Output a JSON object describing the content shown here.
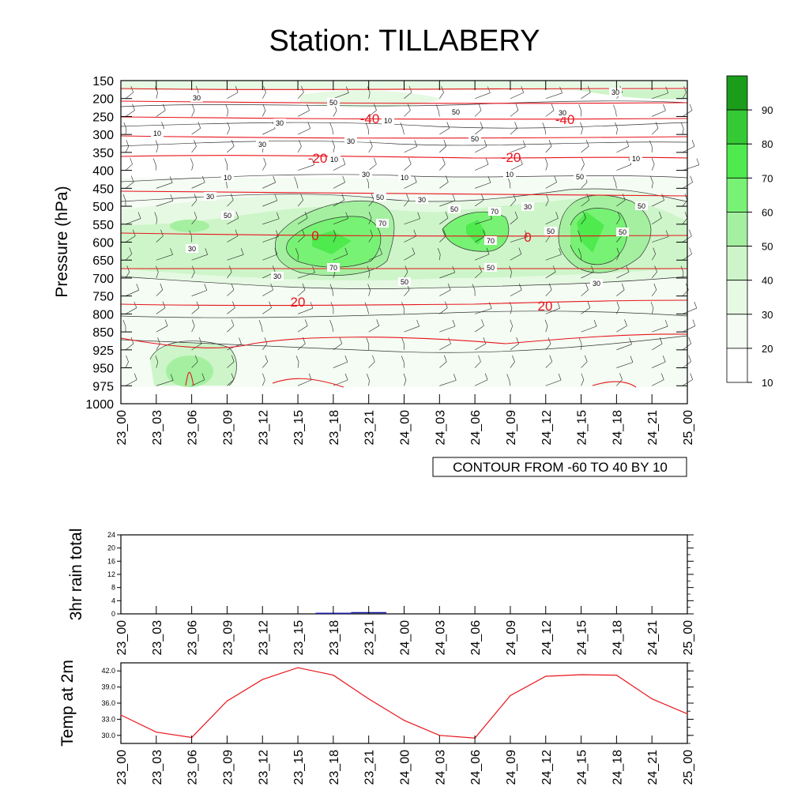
{
  "title": "Station: TILLABERY",
  "colors": {
    "frame": "#000000",
    "temp_contour": "#e8141c",
    "temp_line": "#e8141c",
    "rain_bar": "#1a1aa8",
    "green_levels": [
      "#ffffff",
      "#f4fcf3",
      "#e6f9e3",
      "#cdf5c9",
      "#a4f0a0",
      "#78f274",
      "#4eea4e",
      "#35c935",
      "#1b9d1b"
    ]
  },
  "time_ticks": [
    "23_00",
    "23_03",
    "23_06",
    "23_09",
    "23_12",
    "23_15",
    "23_18",
    "23_21",
    "24_00",
    "24_03",
    "24_06",
    "24_09",
    "24_12",
    "24_15",
    "24_18",
    "24_21",
    "25_00"
  ],
  "contour_note": "CONTOUR FROM -60 TO 40 BY 10",
  "chart_data": [
    {
      "type": "heatmap",
      "title": "Station: TILLABERY",
      "ylabel": "Pressure (hPa)",
      "y_ticks": [
        150,
        200,
        250,
        300,
        350,
        400,
        450,
        500,
        550,
        600,
        650,
        700,
        750,
        800,
        850,
        925,
        950,
        975,
        1000
      ],
      "shaded_levels": [
        10,
        20,
        30,
        40,
        50,
        60,
        70,
        80,
        90
      ],
      "colorbar_labels": [
        "90",
        "80",
        "70",
        "60",
        "50",
        "40",
        "30",
        "20",
        "10"
      ],
      "temperature_contours": [
        {
          "label": "-40",
          "pressure": 260
        },
        {
          "label": "-20",
          "pressure": 360
        },
        {
          "label": "0",
          "pressure": 590
        },
        {
          "label": "20",
          "pressure": 780
        }
      ],
      "humidity_labels": [
        "30",
        "50",
        "10",
        "30",
        "30",
        "50",
        "10",
        "10",
        "10",
        "10",
        "10",
        "30",
        "10",
        "50",
        "30",
        "30",
        "30",
        "50",
        "50",
        "50",
        "70",
        "70",
        "70",
        "50",
        "50",
        "50",
        "70",
        "50",
        "50",
        "30",
        "30",
        "30",
        "30",
        "30",
        "50",
        "30"
      ]
    },
    {
      "type": "bar",
      "ylabel": "3hr rain total",
      "x": [
        "23_00",
        "23_03",
        "23_06",
        "23_09",
        "23_12",
        "23_15",
        "23_18",
        "23_21",
        "24_00",
        "24_03",
        "24_06",
        "24_09",
        "24_12",
        "24_15",
        "24_18",
        "24_21",
        "25_00"
      ],
      "values": [
        0,
        0,
        0,
        0,
        0,
        0,
        0.1,
        0.3,
        0,
        0,
        0,
        0,
        0,
        0,
        0,
        0,
        0
      ],
      "y_ticks": [
        "0",
        "4",
        "8",
        "12",
        "16",
        "20",
        "24"
      ],
      "ylim": [
        0,
        24
      ]
    },
    {
      "type": "line",
      "ylabel": "Temp at 2m",
      "x": [
        "23_00",
        "23_03",
        "23_06",
        "23_09",
        "23_12",
        "23_15",
        "23_18",
        "23_21",
        "24_00",
        "24_03",
        "24_06",
        "24_09",
        "24_12",
        "24_15",
        "24_18",
        "24_21",
        "25_00"
      ],
      "values": [
        33.8,
        30.6,
        29.6,
        36.4,
        40.4,
        42.6,
        41.2,
        36.8,
        32.8,
        30.0,
        29.5,
        37.4,
        41.0,
        41.3,
        41.2,
        36.8,
        34.0
      ],
      "y_ticks": [
        "30.0",
        "33.0",
        "36.0",
        "39.0",
        "42.0"
      ],
      "ylim": [
        28.5,
        43.5
      ]
    }
  ]
}
